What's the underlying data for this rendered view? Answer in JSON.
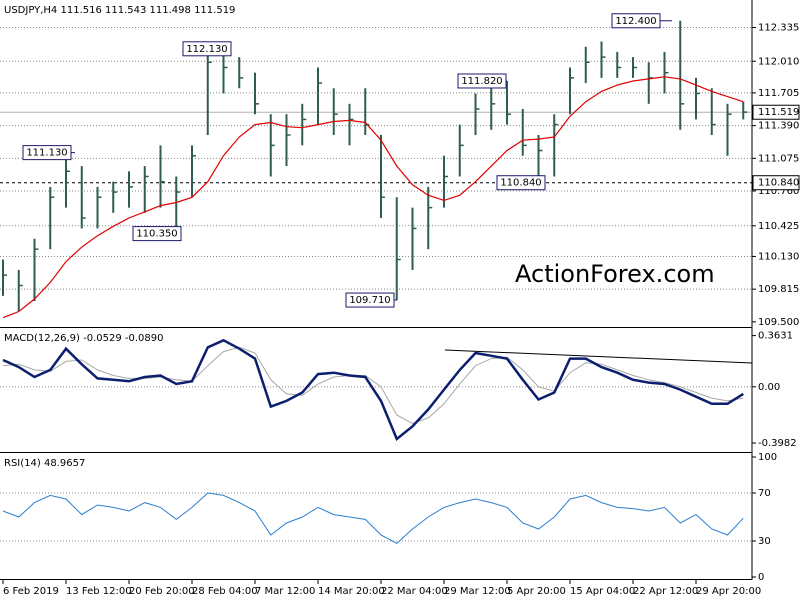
{
  "chart_data": [
    {
      "type": "hlc",
      "title": "USDJPY,H4  111.516 111.543 111.498 111.519",
      "color": "#2f5d50",
      "high": [
        110.1,
        110.0,
        110.3,
        110.8,
        111.1,
        111.0,
        110.8,
        110.85,
        110.95,
        111.0,
        111.2,
        110.9,
        111.2,
        112.1,
        112.13,
        112.05,
        111.9,
        111.5,
        111.5,
        111.6,
        111.95,
        111.75,
        111.6,
        111.75,
        111.3,
        110.7,
        110.6,
        110.8,
        111.1,
        111.4,
        111.7,
        111.75,
        111.82,
        111.55,
        111.3,
        111.5,
        111.95,
        112.15,
        112.2,
        112.1,
        112.05,
        112.0,
        112.1,
        112.4,
        111.85,
        111.75,
        111.6,
        111.62
      ],
      "low": [
        109.75,
        109.6,
        109.7,
        110.2,
        110.6,
        110.4,
        110.4,
        110.55,
        110.6,
        110.55,
        110.6,
        110.35,
        110.7,
        111.3,
        111.7,
        111.75,
        111.5,
        110.9,
        111.0,
        111.2,
        111.4,
        111.3,
        111.2,
        111.3,
        110.5,
        109.71,
        110.0,
        110.2,
        110.6,
        110.9,
        111.3,
        111.35,
        111.4,
        111.1,
        110.84,
        110.9,
        111.5,
        111.8,
        111.85,
        111.85,
        111.85,
        111.6,
        111.7,
        111.35,
        111.45,
        111.3,
        111.1,
        111.45
      ],
      "close": [
        109.95,
        109.85,
        110.2,
        110.7,
        110.95,
        110.5,
        110.7,
        110.75,
        110.8,
        110.9,
        110.85,
        110.75,
        111.1,
        112.0,
        111.95,
        111.85,
        111.6,
        111.2,
        111.3,
        111.45,
        111.8,
        111.5,
        111.45,
        111.4,
        110.7,
        110.1,
        110.4,
        110.6,
        110.9,
        111.2,
        111.55,
        111.6,
        111.5,
        111.2,
        111.15,
        111.4,
        111.85,
        112.0,
        112.05,
        111.95,
        111.95,
        111.85,
        111.9,
        111.6,
        111.7,
        111.4,
        111.5,
        111.52
      ],
      "ma": {
        "color": "#e00000",
        "values": [
          109.54,
          109.6,
          109.72,
          109.88,
          110.08,
          110.22,
          110.33,
          110.42,
          110.5,
          110.56,
          110.62,
          110.65,
          110.7,
          110.85,
          111.1,
          111.28,
          111.4,
          111.42,
          111.38,
          111.37,
          111.4,
          111.43,
          111.44,
          111.42,
          111.25,
          111.0,
          110.82,
          110.72,
          110.67,
          110.72,
          110.85,
          111.0,
          111.15,
          111.25,
          111.26,
          111.28,
          111.48,
          111.62,
          111.72,
          111.78,
          111.82,
          111.84,
          111.86,
          111.84,
          111.78,
          111.72,
          111.67,
          111.62
        ]
      },
      "ylim": [
        109.46,
        112.6
      ],
      "yticks": [
        112.335,
        {
          "value": 112.01,
          "label": "112.010"
        },
        111.705,
        {
          "value": 111.39,
          "label": "111.390"
        },
        111.075,
        {
          "value": 110.76,
          "label": "110.760"
        },
        110.425,
        {
          "value": 110.13,
          "label": "110.130"
        },
        109.815,
        {
          "value": 109.5,
          "label": "109.500"
        }
      ],
      "last_price": 111.519,
      "level": {
        "value": 110.84,
        "label": "110.840"
      },
      "annotations": [
        {
          "value": 112.4,
          "label": "112.400"
        },
        {
          "value": 112.13,
          "label": "112.130"
        },
        {
          "value": 111.82,
          "label": "111.820"
        },
        {
          "value": 111.13,
          "label": "111.130"
        },
        {
          "value": 110.35,
          "label": "110.350"
        },
        {
          "value": 109.71,
          "label": "109.710"
        },
        {
          "value": 110.84,
          "label": "110.840"
        }
      ],
      "watermark": "ActionForex.com"
    },
    {
      "type": "line",
      "title": "MACD(12,26,9) -0.0529 -0.0890",
      "series": [
        {
          "color": "#0b1f6e",
          "values": [
            0.19,
            0.14,
            0.07,
            0.12,
            0.27,
            0.16,
            0.06,
            0.05,
            0.04,
            0.07,
            0.08,
            0.02,
            0.04,
            0.28,
            0.33,
            0.27,
            0.2,
            -0.14,
            -0.1,
            -0.04,
            0.09,
            0.1,
            0.08,
            0.07,
            -0.1,
            -0.37,
            -0.28,
            -0.16,
            -0.02,
            0.12,
            0.24,
            0.22,
            0.2,
            0.05,
            -0.09,
            -0.04,
            0.2,
            0.2,
            0.14,
            0.1,
            0.05,
            0.03,
            0.02,
            -0.02,
            -0.07,
            -0.12,
            -0.12,
            -0.05
          ]
        },
        {
          "color": "#a8a8a8",
          "values": [
            0.15,
            0.16,
            0.12,
            0.11,
            0.18,
            0.19,
            0.12,
            0.08,
            0.06,
            0.06,
            0.07,
            0.05,
            0.04,
            0.15,
            0.25,
            0.28,
            0.24,
            0.05,
            -0.05,
            -0.06,
            0.02,
            0.07,
            0.08,
            0.08,
            0.0,
            -0.2,
            -0.26,
            -0.22,
            -0.12,
            0.02,
            0.15,
            0.2,
            0.21,
            0.12,
            0.0,
            -0.03,
            0.1,
            0.17,
            0.16,
            0.12,
            0.08,
            0.05,
            0.03,
            0.0,
            -0.04,
            -0.08,
            -0.1,
            -0.08
          ]
        }
      ],
      "ylim": [
        -0.455,
        0.41
      ],
      "yticks": [
        0.3631,
        {
          "value": 0,
          "label": "0.00"
        },
        -0.3982
      ]
    },
    {
      "type": "line",
      "title": "RSI(14) 48.9657",
      "series": [
        {
          "color": "#2a7fd0",
          "values": [
            55,
            50,
            62,
            68,
            65,
            52,
            60,
            58,
            55,
            62,
            58,
            48,
            58,
            70,
            68,
            62,
            55,
            35,
            45,
            50,
            58,
            52,
            50,
            48,
            35,
            28,
            40,
            50,
            58,
            62,
            65,
            62,
            58,
            45,
            40,
            50,
            65,
            68,
            62,
            58,
            57,
            55,
            58,
            45,
            52,
            40,
            35,
            49
          ]
        }
      ],
      "ylim": [
        0,
        100
      ],
      "yticks": [
        100,
        70,
        30,
        0
      ],
      "categories": [
        "6 Feb 2019",
        null,
        null,
        null,
        "13 Feb 12:00",
        null,
        null,
        null,
        "20 Feb 20:00",
        null,
        null,
        null,
        "28 Feb 04:00",
        null,
        null,
        null,
        "7 Mar 12:00",
        null,
        null,
        null,
        "14 Mar 20:00",
        null,
        null,
        null,
        "22 Mar 04:00",
        null,
        null,
        null,
        "29 Mar 12:00",
        null,
        null,
        null,
        "5 Apr 20:00",
        null,
        null,
        null,
        "15 Apr 04:00",
        null,
        null,
        null,
        "22 Apr 12:00",
        null,
        null,
        null,
        "29 Apr 20:00",
        null,
        null,
        null
      ]
    }
  ]
}
